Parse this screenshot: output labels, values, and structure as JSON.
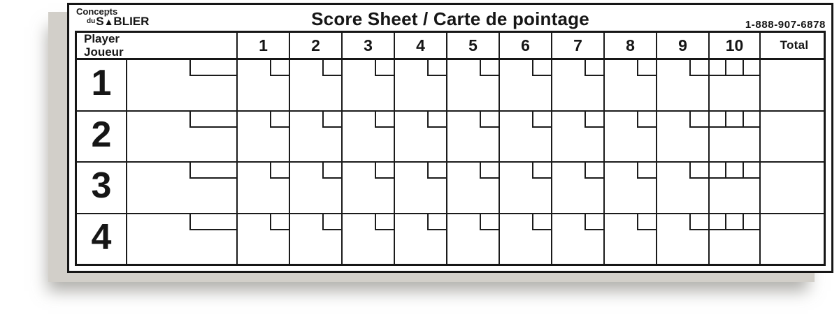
{
  "logo": {
    "line1": "Concepts",
    "du": "du",
    "s_letter": "S",
    "blier": "BLIER",
    "hourglass_top_glyph": "▽",
    "hourglass_bottom_glyph": "▲"
  },
  "header_bar": {
    "title": "Score Sheet / Carte de pointage",
    "phone": "1-888-907-6878"
  },
  "table": {
    "player_header": {
      "line1": "Player",
      "line2": "Joueur"
    },
    "frame_headers": [
      "1",
      "2",
      "3",
      "4",
      "5",
      "6",
      "7",
      "8",
      "9",
      "10"
    ],
    "total_header": "Total",
    "rows": [
      {
        "number": "1"
      },
      {
        "number": "2"
      },
      {
        "number": "3"
      },
      {
        "number": "4"
      }
    ]
  },
  "colors": {
    "line": "#1a1a1a",
    "paper": "#ffffff",
    "pad_edge": "#d2cfc9"
  }
}
